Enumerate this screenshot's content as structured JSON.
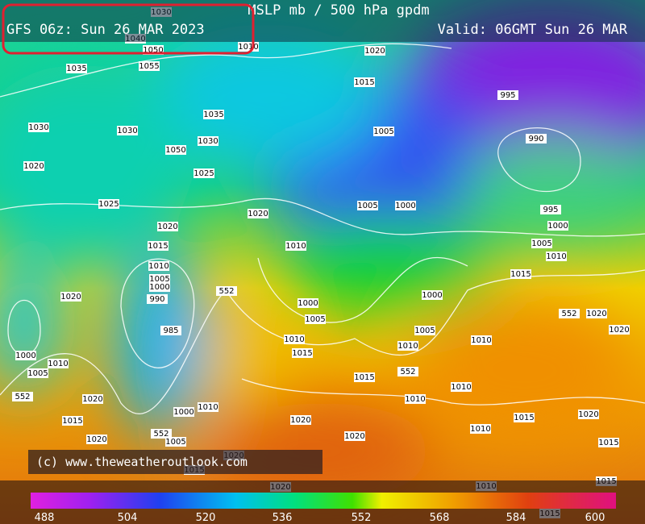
{
  "header": {
    "title": "MSLP mb / 500 hPa gpdm",
    "run": "GFS 06z: Sun 26 MAR 2023",
    "valid": "Valid: 06GMT Sun 26 MAR"
  },
  "copyright": "(c) www.theweatheroutlook.com",
  "colorbar": {
    "ticks": [
      488,
      504,
      520,
      536,
      552,
      568,
      584,
      600
    ]
  },
  "isobar_labels": [
    1030,
    1040,
    1050,
    1055,
    1035,
    1010,
    1020,
    1015,
    995,
    1035,
    1030,
    1030,
    1030,
    1005,
    990,
    1050,
    1020,
    1025,
    1025,
    1020,
    1005,
    1000,
    995,
    1020,
    1000,
    1015,
    1010,
    1005,
    1010,
    1010,
    1005,
    1000,
    990,
    1015,
    552,
    1020,
    1000,
    1000,
    552,
    1020,
    1005,
    985,
    1020,
    1005,
    1010,
    1010,
    1015,
    1000,
    1010,
    1005,
    1010,
    1015,
    552,
    1010,
    552,
    1020,
    1010,
    1010,
    1000,
    1015,
    1020,
    1015,
    1020,
    1010,
    552,
    1020,
    1005,
    1020,
    1015,
    1020,
    1015,
    1010,
    1020,
    1015,
    1015
  ]
}
